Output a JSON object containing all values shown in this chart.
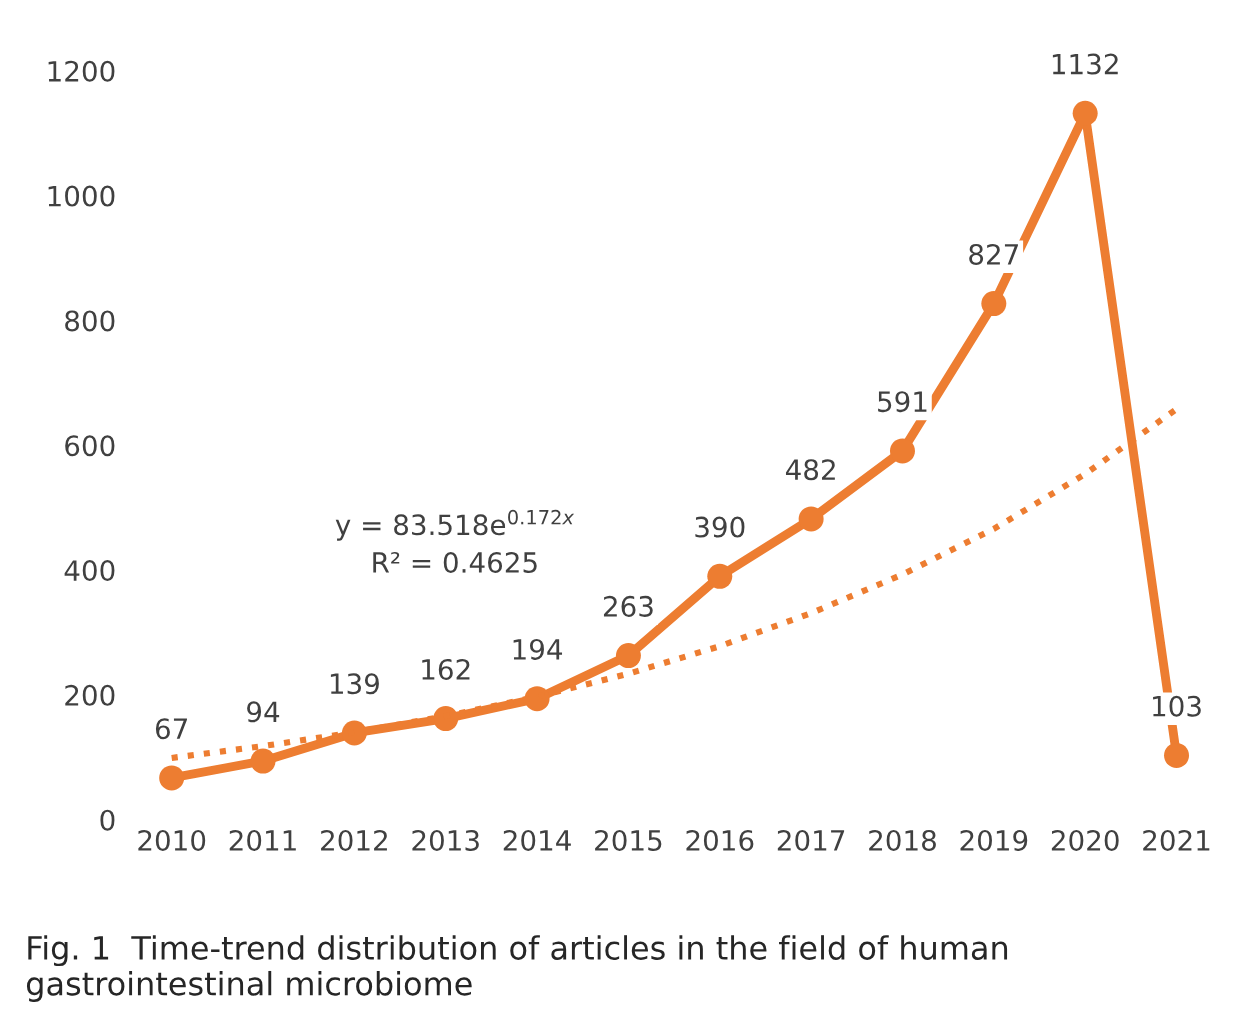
{
  "chart_data": {
    "type": "line",
    "categories": [
      "2010",
      "2011",
      "2012",
      "2013",
      "2014",
      "2015",
      "2016",
      "2017",
      "2018",
      "2019",
      "2020",
      "2021"
    ],
    "series": [
      {
        "color": "#ed7d31",
        "values": [
          67,
          94,
          139,
          162,
          194,
          263,
          390,
          482,
          591,
          827,
          1132,
          103
        ],
        "marker": "circle",
        "line_style": "solid",
        "data_labels": true
      },
      {
        "color": "#ed7d31",
        "values": [
          99,
          118,
          140,
          166,
          197,
          234,
          278,
          331,
          393,
          466,
          554,
          658
        ],
        "marker": "none",
        "line_style": "dotted"
      }
    ],
    "ylim": [
      0,
      1200
    ],
    "yticks": [
      0,
      200,
      400,
      600,
      800,
      1000,
      1200
    ],
    "grid": false,
    "legend": false,
    "annotations": [
      "y = 83.518e$^{0.172x}$",
      "R² = 0.4625",
      "Fig. 1  Time-trend distribution of articles in the field of human gastrointestinal microbiome"
    ]
  }
}
